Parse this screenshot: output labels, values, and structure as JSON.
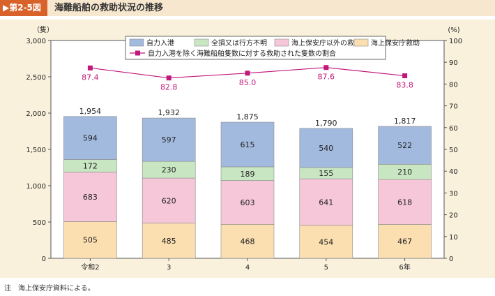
{
  "header": {
    "fig_no": "▶第2-5図",
    "title": "海難船舶の救助状況の推移"
  },
  "note": "注　海上保安庁資料による。",
  "colors": {
    "self": "#a3badf",
    "missing": "#c9e6c2",
    "other": "#f6c7d8",
    "jcg": "#fbdfb0",
    "line": "#c0187b"
  },
  "chart_data": {
    "type": "bar",
    "stacked": true,
    "categories": [
      "令和2",
      "3",
      "4",
      "5",
      "6年"
    ],
    "ylabel": "（隻）",
    "y2label": "(%)",
    "ylim": [
      0,
      3000
    ],
    "y_ticks": [
      "0",
      "500",
      "1,000",
      "1,500",
      "2,000",
      "2,500",
      "3,000"
    ],
    "y2lim": [
      0,
      100
    ],
    "y2_ticks": [
      "0",
      "10",
      "20",
      "30",
      "40",
      "50",
      "60",
      "70",
      "80",
      "90",
      "100"
    ],
    "legend_position": "top",
    "series": [
      {
        "name": "海上保安庁救助",
        "color_key": "jcg",
        "values": [
          505,
          485,
          468,
          454,
          467
        ]
      },
      {
        "name": "海上保安庁以外の救助",
        "color_key": "other",
        "values": [
          683,
          620,
          603,
          641,
          618
        ]
      },
      {
        "name": "全損又は行方不明",
        "color_key": "missing",
        "values": [
          172,
          230,
          189,
          155,
          210
        ]
      },
      {
        "name": "自力入港",
        "color_key": "self",
        "values": [
          594,
          597,
          615,
          540,
          522
        ]
      }
    ],
    "legend_order": [
      "自力入港",
      "全損又は行方不明",
      "海上保安庁以外の救助",
      "海上保安庁救助"
    ],
    "totals": [
      "1,954",
      "1,932",
      "1,875",
      "1,790",
      "1,817"
    ],
    "line": {
      "name": "自力入港を除く海難船舶隻数に対する救助された隻数の割合",
      "values": [
        87.4,
        82.8,
        85.0,
        87.6,
        83.8
      ],
      "labels": [
        "87.4",
        "82.8",
        "85.0",
        "87.6",
        "83.8"
      ]
    }
  }
}
